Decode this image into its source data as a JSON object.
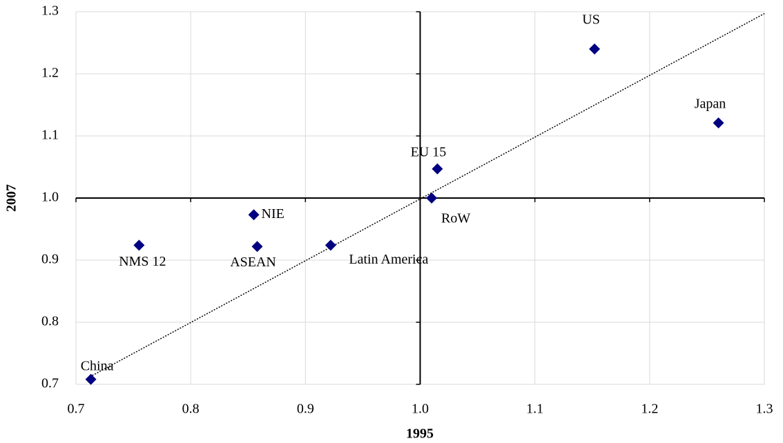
{
  "chart_data": {
    "type": "scatter",
    "x_label": "1995",
    "y_label": "2007",
    "labels": [
      "China",
      "NMS 12",
      "NIE",
      "ASEAN",
      "Latin America",
      "RoW",
      "EU 15",
      "US",
      "Japan"
    ],
    "x": [
      0.713,
      0.755,
      0.855,
      0.858,
      0.922,
      1.01,
      1.015,
      1.152,
      1.26
    ],
    "y": [
      0.708,
      0.924,
      0.973,
      0.922,
      0.924,
      1.0,
      1.047,
      1.24,
      1.121
    ],
    "color": "#000080",
    "trendline": {
      "x": [
        0.71,
        1.3
      ],
      "y": [
        0.71,
        1.297
      ]
    },
    "xlim": [
      0.7,
      1.3
    ],
    "ylim": [
      0.7,
      1.3
    ],
    "xticks": [
      0.7,
      0.8,
      0.9,
      {
        "value": 1,
        "label": "1.0"
      },
      1.1,
      1.2,
      1.3
    ],
    "yticks": [
      0.7,
      0.8,
      0.9,
      {
        "value": 1,
        "label": "1.0"
      },
      1.1,
      1.2,
      1.3
    ],
    "x_axis_at": 1,
    "y_axis_at": 1,
    "grid": true
  }
}
